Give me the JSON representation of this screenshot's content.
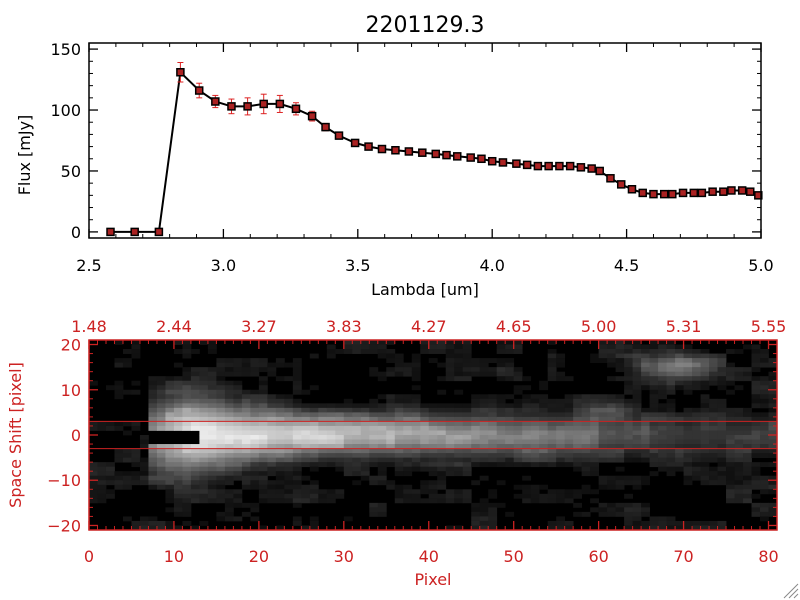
{
  "chart_data": [
    {
      "type": "line",
      "title": "2201129.3",
      "xlabel": "Lambda [um]",
      "ylabel": "Flux [mJy]",
      "xlim": [
        2.5,
        5.0
      ],
      "ylim": [
        -5,
        155
      ],
      "xticks": [
        2.5,
        3.0,
        3.5,
        4.0,
        4.5,
        5.0
      ],
      "xtick_labels": [
        "2.5",
        "3.0",
        "3.5",
        "4.0",
        "4.5",
        "5.0"
      ],
      "yticks": [
        0,
        50,
        100,
        150
      ],
      "ytick_labels": [
        "0",
        "50",
        "100",
        "150"
      ],
      "grid": false,
      "colors": {
        "line": "#000000",
        "marker": "#000000",
        "marker_fill": "#aa2222",
        "error_bar": "#dd2222"
      },
      "x": [
        2.58,
        2.67,
        2.76,
        2.84,
        2.91,
        2.97,
        3.03,
        3.09,
        3.15,
        3.21,
        3.27,
        3.33,
        3.38,
        3.43,
        3.49,
        3.54,
        3.59,
        3.64,
        3.69,
        3.74,
        3.79,
        3.83,
        3.87,
        3.92,
        3.96,
        4.0,
        4.04,
        4.09,
        4.13,
        4.17,
        4.21,
        4.25,
        4.29,
        4.33,
        4.37,
        4.4,
        4.44,
        4.48,
        4.52,
        4.56,
        4.6,
        4.64,
        4.67,
        4.71,
        4.75,
        4.78,
        4.82,
        4.86,
        4.89,
        4.93,
        4.96,
        4.99
      ],
      "y": [
        0,
        0,
        0,
        131,
        116,
        107,
        103,
        103,
        105,
        105,
        101,
        95,
        86,
        79,
        73,
        70,
        68,
        67,
        66,
        65,
        64,
        63,
        62,
        61,
        60,
        58,
        57,
        56,
        55,
        54,
        54,
        54,
        54,
        53,
        52,
        50,
        44,
        39,
        35,
        32,
        31,
        31,
        31,
        32,
        32,
        32,
        33,
        33,
        34,
        34,
        33,
        30
      ],
      "yerr": [
        0,
        0,
        0,
        8,
        6,
        5,
        6,
        7,
        8,
        7,
        5,
        4,
        3,
        2,
        2,
        1,
        1,
        1,
        1,
        1,
        1,
        1,
        1,
        1,
        1,
        1,
        1,
        1,
        1,
        1,
        1,
        1,
        1,
        1,
        1,
        1,
        1,
        1,
        1,
        1,
        1,
        1,
        1,
        1,
        1,
        1,
        1,
        1,
        1,
        1,
        1,
        1
      ]
    },
    {
      "type": "heatmap",
      "xlabel": "Pixel",
      "ylabel": "Space Shift [pixel]",
      "xlim": [
        0,
        81
      ],
      "ylim": [
        -21,
        21
      ],
      "xticks": [
        0,
        10,
        20,
        30,
        40,
        50,
        60,
        70,
        80
      ],
      "xtick_labels": [
        "0",
        "10",
        "20",
        "30",
        "40",
        "50",
        "60",
        "70",
        "80"
      ],
      "yticks": [
        -20,
        -10,
        0,
        10,
        20
      ],
      "ytick_labels": [
        "−20",
        "−10",
        "0",
        "10",
        "20"
      ],
      "top_axis_ticks": [
        0,
        10,
        20,
        30,
        40,
        50,
        60,
        70,
        80
      ],
      "top_axis_labels": [
        "1.48",
        "2.44",
        "3.27",
        "3.83",
        "4.27",
        "4.65",
        "5.00",
        "5.31",
        "5.55"
      ],
      "extraction_band": [
        -3,
        3
      ],
      "colormap": "grayscale",
      "colors": {
        "axis": "#cc2222",
        "band_line": "#cc2222"
      }
    }
  ]
}
